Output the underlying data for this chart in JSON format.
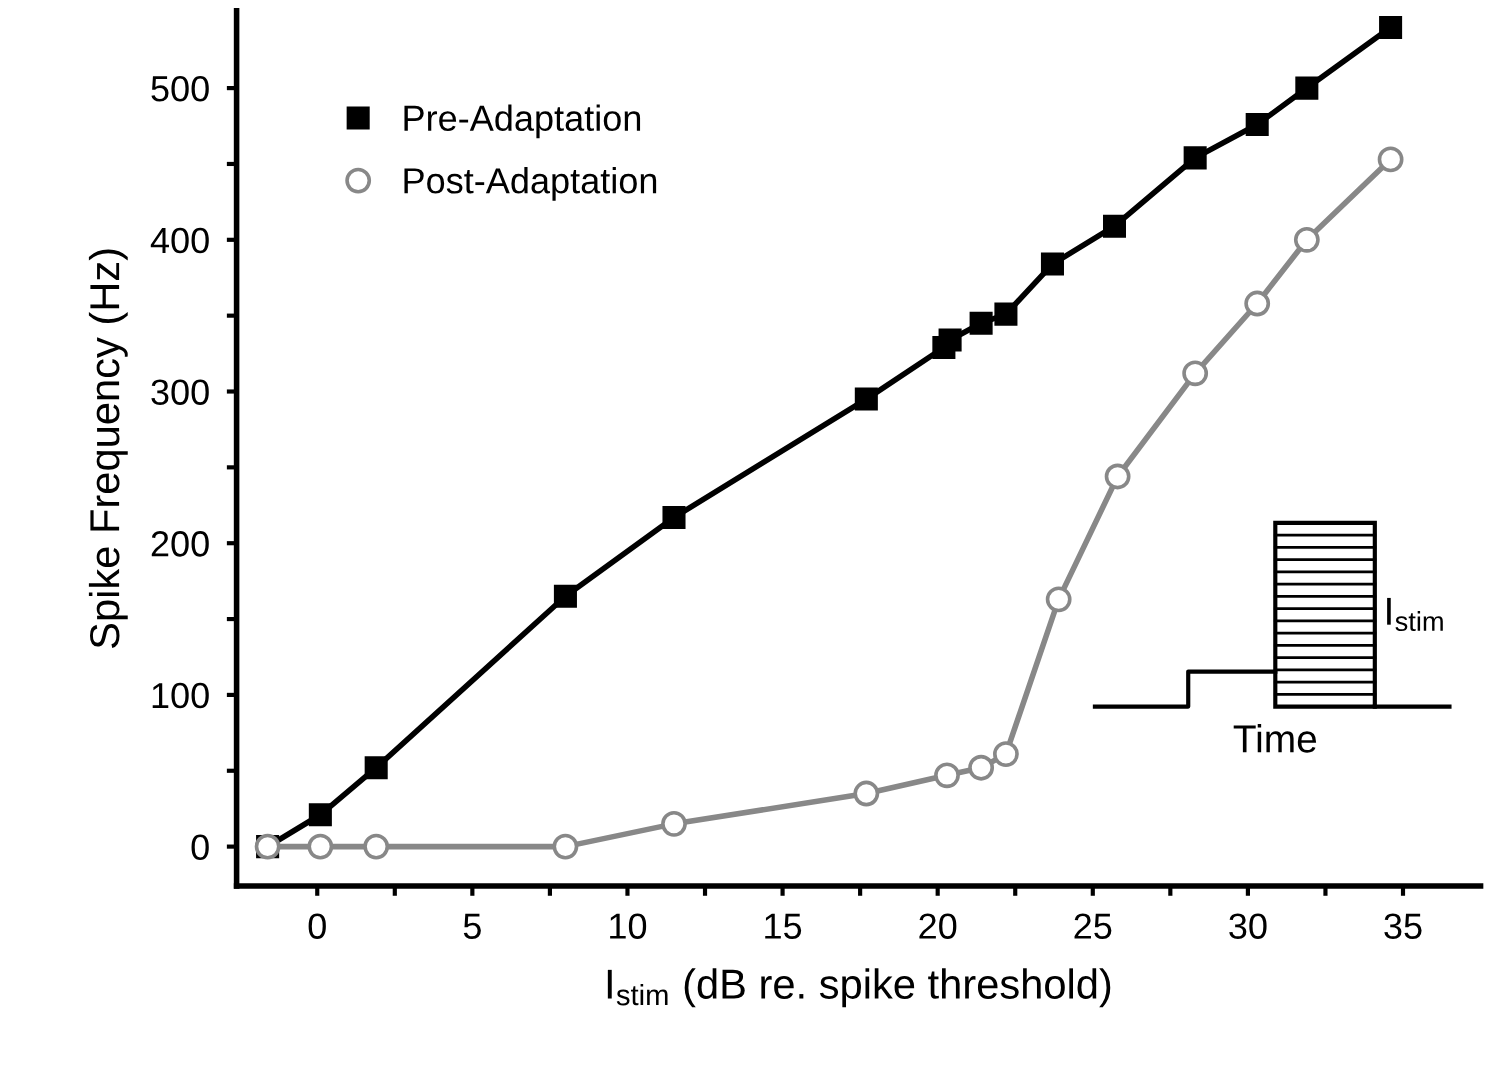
{
  "chart_data": {
    "type": "line",
    "xlabel": "I$_{stim}$ (dB re. spike threshold)",
    "ylabel": "Spike Frequency (Hz)",
    "xlim": [
      -2.6,
      37.5
    ],
    "ylim": [
      -26,
      551
    ],
    "xticks": [
      0,
      {
        "value": 2.5,
        "label": null
      },
      5,
      {
        "value": 7.5,
        "label": null
      },
      10,
      {
        "value": 12.5,
        "label": null
      },
      15,
      {
        "value": 17.5,
        "label": null
      },
      20,
      {
        "value": 22.5,
        "label": null
      },
      25,
      {
        "value": 27.5,
        "label": null
      },
      30,
      {
        "value": 32.5,
        "label": null
      },
      35
    ],
    "yticks": [
      0,
      {
        "value": 50,
        "label": null
      },
      100,
      {
        "value": 150,
        "label": null
      },
      200,
      {
        "value": 250,
        "label": null
      },
      300,
      {
        "value": 350,
        "label": null
      },
      400,
      {
        "value": 450,
        "label": null
      },
      500
    ],
    "grid": false,
    "legend": "top left",
    "series": [
      {
        "name": "Pre-Adaptation",
        "color": "#000000",
        "marker": "square",
        "x": [
          -1.6,
          0.1,
          1.9,
          8.0,
          11.5,
          17.7,
          20.2,
          20.4,
          21.4,
          22.2,
          23.7,
          25.7,
          28.3,
          30.3,
          31.9,
          34.6
        ],
        "values": [
          0,
          21,
          52,
          165,
          217,
          295,
          329,
          334,
          345,
          351,
          384,
          409,
          454,
          476,
          500,
          540
        ]
      },
      {
        "name": "Post-Adaptation",
        "color": "#888888",
        "marker": "circle",
        "x": [
          -1.6,
          0.1,
          1.9,
          8.0,
          11.5,
          17.7,
          20.3,
          21.4,
          22.2,
          23.9,
          25.8,
          28.3,
          30.3,
          31.9,
          34.6
        ],
        "values": [
          0,
          0,
          0,
          0,
          15,
          35,
          47,
          52,
          61,
          163,
          244,
          312,
          358,
          400,
          453
        ]
      }
    ],
    "annotations": [
      "I$_{stim}$",
      "Time"
    ]
  }
}
